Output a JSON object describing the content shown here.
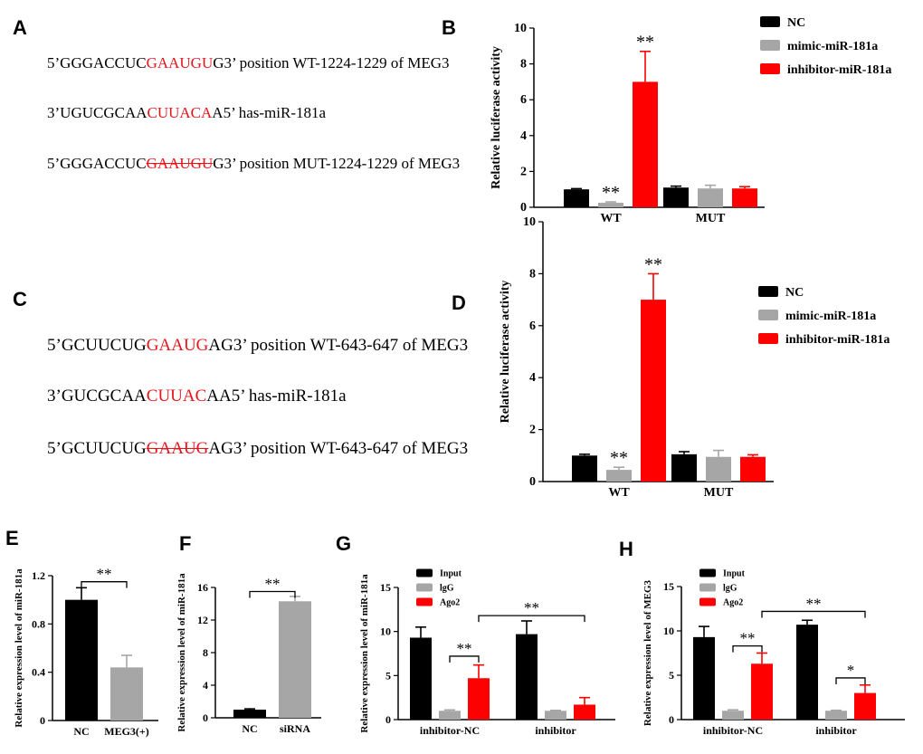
{
  "panel_labels": {
    "A": "A",
    "B": "B",
    "C": "C",
    "D": "D",
    "E": "E",
    "F": "F",
    "G": "G",
    "H": "H"
  },
  "sequences_A": [
    {
      "prefix": "5’GGGACCUC",
      "motif": "GAAUGU",
      "suffix": "G3’ position WT-1224-1229 of MEG3",
      "strike": false
    },
    {
      "prefix": "3’UGUCGCAA",
      "motif": "CUUACA",
      "suffix": "A5’ has-miR-181a",
      "strike": false
    },
    {
      "prefix": "5’GGGACCUC",
      "motif": "GAAUGU",
      "suffix": "G3’ position MUT-1224-1229 of MEG3",
      "strike": true
    }
  ],
  "sequences_C": [
    {
      "prefix": "5’GCUUCUG",
      "motif": "GAAUG",
      "suffix": "AG3’ position WT-643-647 of MEG3",
      "strike": false
    },
    {
      "prefix": "3’GUCGCAA",
      "motif": "CUUAC",
      "suffix": "AA5’ has-miR-181a",
      "strike": false
    },
    {
      "prefix": "5’GCUUCUG",
      "motif": "GAAUG",
      "suffix": "AG3’ position WT-643-647 of MEG3",
      "strike": true
    }
  ],
  "colors": {
    "black": "#000000",
    "gray": "#a6a6a6",
    "red": "#ff0000",
    "motif": "#e8141b"
  },
  "chart_data": [
    {
      "id": "B",
      "type": "bar",
      "ylabel": "Relative luciferase activity",
      "ylim": [
        0,
        10
      ],
      "yticks": [
        0,
        2,
        4,
        6,
        8,
        10
      ],
      "categories": [
        "WT",
        "MUT"
      ],
      "series": [
        {
          "name": "NC",
          "color": "#000000",
          "values": [
            1.0,
            1.1
          ],
          "errors": [
            0.04,
            0.08
          ]
        },
        {
          "name": "mimic-miR-181a",
          "color": "#a6a6a6",
          "values": [
            0.25,
            1.05
          ],
          "errors": [
            0.05,
            0.18
          ]
        },
        {
          "name": "inhibitor-miR-181a",
          "color": "#ff0000",
          "values": [
            7.0,
            1.05
          ],
          "errors": [
            1.7,
            0.1
          ]
        }
      ],
      "annotations": [
        {
          "group": 0,
          "series": 1,
          "text": "**"
        },
        {
          "group": 0,
          "series": 2,
          "text": "**"
        }
      ]
    },
    {
      "id": "D",
      "type": "bar",
      "ylabel": "Relative luciferase activity",
      "ylim": [
        0,
        10
      ],
      "yticks": [
        0,
        2,
        4,
        6,
        8,
        10
      ],
      "categories": [
        "WT",
        "MUT"
      ],
      "series": [
        {
          "name": "NC",
          "color": "#000000",
          "values": [
            1.0,
            1.05
          ],
          "errors": [
            0.05,
            0.1
          ]
        },
        {
          "name": "mimic-miR-181a",
          "color": "#a6a6a6",
          "values": [
            0.45,
            0.95
          ],
          "errors": [
            0.1,
            0.25
          ]
        },
        {
          "name": "inhibitor-miR-181a",
          "color": "#ff0000",
          "values": [
            7.0,
            0.95
          ],
          "errors": [
            1.0,
            0.08
          ]
        }
      ],
      "annotations": [
        {
          "group": 0,
          "series": 1,
          "text": "**"
        },
        {
          "group": 0,
          "series": 2,
          "text": "**"
        }
      ]
    },
    {
      "id": "E",
      "type": "bar",
      "ylabel": "Relative expression level of miR-181a",
      "ylim": [
        0,
        1.2
      ],
      "yticks": [
        0,
        0.4,
        0.8,
        1.2
      ],
      "ytick_labels": [
        "0",
        "0.4",
        "0.8",
        "1.2"
      ],
      "categories": [
        "NC",
        "MEG3(+)"
      ],
      "series": [
        {
          "name": "",
          "colors": [
            "#000000",
            "#a6a6a6"
          ],
          "values": [
            1.0,
            0.44
          ],
          "errors": [
            0.1,
            0.1
          ]
        }
      ],
      "brackets": [
        {
          "from": 0,
          "to": 1,
          "text": "**",
          "y": 1.15
        }
      ]
    },
    {
      "id": "F",
      "type": "bar",
      "ylabel": "Relative expression level of miR-181a",
      "ylim": [
        0,
        16
      ],
      "yticks": [
        0,
        4,
        8,
        12,
        16
      ],
      "categories": [
        "NC",
        "siRNA"
      ],
      "series": [
        {
          "name": "",
          "colors": [
            "#000000",
            "#a6a6a6"
          ],
          "values": [
            1.0,
            14.3
          ],
          "errors": [
            0.1,
            0.6
          ]
        }
      ],
      "brackets": [
        {
          "from": 0,
          "to": 1,
          "text": "**",
          "y": 15.5
        }
      ]
    },
    {
      "id": "G",
      "type": "bar",
      "ylabel": "Relative expression level  of miR-181a",
      "ylim": [
        0,
        15
      ],
      "yticks": [
        0,
        5,
        10,
        15
      ],
      "categories": [
        "inhibitor-NC",
        "inhibitor"
      ],
      "series": [
        {
          "name": "Input",
          "color": "#000000",
          "values": [
            9.3,
            9.7
          ],
          "errors": [
            1.2,
            1.5
          ]
        },
        {
          "name": "lgG",
          "color": "#a6a6a6",
          "values": [
            1.0,
            1.0
          ],
          "errors": [
            0.1,
            0.05
          ]
        },
        {
          "name": "Ago2",
          "color": "#ff0000",
          "values": [
            4.7,
            1.7
          ],
          "errors": [
            1.5,
            0.8
          ]
        }
      ],
      "brackets": [
        {
          "from": [
            0,
            1
          ],
          "to": [
            0,
            2
          ],
          "text": "**",
          "y": 7.2
        },
        {
          "from": [
            0,
            2
          ],
          "to": [
            1,
            2
          ],
          "text": "**",
          "y": 11.8
        }
      ]
    },
    {
      "id": "H",
      "type": "bar",
      "ylabel": "Relative expression level of MEG3",
      "ylim": [
        0,
        15
      ],
      "yticks": [
        0,
        5,
        10,
        15
      ],
      "categories": [
        "inhibitor-NC",
        "inhibitor"
      ],
      "series": [
        {
          "name": "Input",
          "color": "#000000",
          "values": [
            9.3,
            10.7
          ],
          "errors": [
            1.2,
            0.5
          ]
        },
        {
          "name": "lgG",
          "color": "#a6a6a6",
          "values": [
            1.0,
            1.0
          ],
          "errors": [
            0.1,
            0.05
          ]
        },
        {
          "name": "Ago2",
          "color": "#ff0000",
          "values": [
            6.3,
            3.0
          ],
          "errors": [
            1.2,
            0.9
          ]
        }
      ],
      "brackets": [
        {
          "from": [
            0,
            1
          ],
          "to": [
            0,
            2
          ],
          "text": "**",
          "y": 8.3
        },
        {
          "from": [
            1,
            1
          ],
          "to": [
            1,
            2
          ],
          "text": "*",
          "y": 4.7
        },
        {
          "from": [
            0,
            2
          ],
          "to": [
            1,
            2
          ],
          "text": "**",
          "y": 12.2
        }
      ]
    }
  ]
}
